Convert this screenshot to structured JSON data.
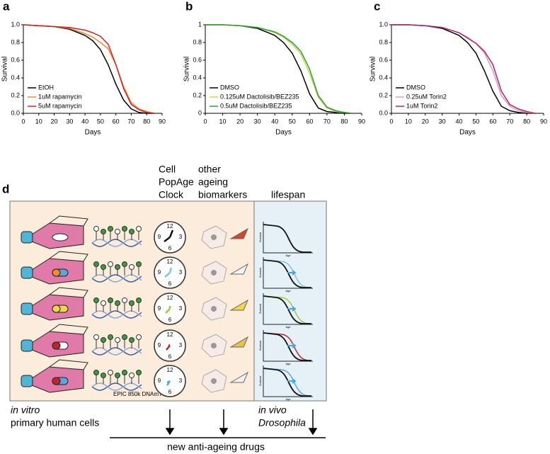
{
  "chart_data": [
    {
      "type": "line",
      "panel": "a",
      "x_label": "Days",
      "y_label": "Survival",
      "x": [
        0,
        10,
        20,
        30,
        40,
        45,
        50,
        55,
        60,
        65,
        70,
        75,
        80,
        85
      ],
      "xlim": [
        0,
        90
      ],
      "xticks": [
        0,
        10,
        20,
        30,
        40,
        50,
        60,
        70,
        80,
        90
      ],
      "ylim": [
        0,
        1
      ],
      "yticks": [
        {
          "value": 0,
          "label": "0.0"
        },
        0.2,
        0.4,
        0.6,
        0.8,
        {
          "value": 1,
          "label": "1.0"
        }
      ],
      "legend": "lower left",
      "series": [
        {
          "name": "EtOH",
          "color": "#000000",
          "values": [
            1,
            0.99,
            0.98,
            0.95,
            0.88,
            0.82,
            0.72,
            0.55,
            0.33,
            0.15,
            0.05,
            0.01,
            0,
            0
          ]
        },
        {
          "name": "1uM rapamycin",
          "color": "#f28c28",
          "values": [
            1,
            0.99,
            0.98,
            0.96,
            0.9,
            0.86,
            0.8,
            0.73,
            0.55,
            0.3,
            0.12,
            0.05,
            0.02,
            0
          ]
        },
        {
          "name": "5uM rapamycin",
          "color": "#d2232a",
          "values": [
            1,
            0.99,
            0.98,
            0.97,
            0.94,
            0.91,
            0.87,
            0.78,
            0.55,
            0.28,
            0.1,
            0.04,
            0.01,
            0
          ]
        }
      ]
    },
    {
      "type": "line",
      "panel": "b",
      "x_label": "Days",
      "y_label": "Survival",
      "x": [
        0,
        10,
        20,
        30,
        40,
        45,
        50,
        55,
        60,
        65,
        70,
        75,
        80,
        85
      ],
      "xlim": [
        0,
        90
      ],
      "xticks": [
        0,
        10,
        20,
        30,
        40,
        50,
        60,
        70,
        80,
        90
      ],
      "ylim": [
        0,
        1
      ],
      "yticks": [
        0,
        0.2,
        0.4,
        0.6,
        0.8,
        1
      ],
      "legend": "lower left",
      "series": [
        {
          "name": "DMSO",
          "color": "#000000",
          "values": [
            1,
            1,
            0.99,
            0.96,
            0.88,
            0.8,
            0.68,
            0.48,
            0.22,
            0.06,
            0.02,
            0.01,
            0,
            0
          ]
        },
        {
          "name": "0.125uM Dactolisib/BEZ235",
          "color": "#c9d94a",
          "values": [
            1,
            1,
            0.99,
            0.97,
            0.91,
            0.86,
            0.78,
            0.67,
            0.45,
            0.18,
            0.06,
            0.02,
            0.01,
            0
          ]
        },
        {
          "name": "0.5uM Dactolisib/BEZ235",
          "color": "#2e9e3a",
          "values": [
            1,
            1,
            0.99,
            0.97,
            0.92,
            0.87,
            0.8,
            0.7,
            0.5,
            0.2,
            0.07,
            0.03,
            0.01,
            0
          ]
        }
      ]
    },
    {
      "type": "line",
      "panel": "c",
      "x_label": "Days",
      "y_label": "Survival",
      "x": [
        0,
        10,
        20,
        30,
        40,
        45,
        50,
        55,
        60,
        65,
        70,
        75,
        80,
        85
      ],
      "xlim": [
        0,
        90
      ],
      "xticks": [
        0,
        10,
        20,
        30,
        40,
        50,
        60,
        70,
        80,
        90
      ],
      "ylim": [
        0,
        1
      ],
      "yticks": [
        {
          "value": 0,
          "label": "0.0"
        },
        0.2,
        0.4,
        0.6,
        0.8,
        {
          "value": 1,
          "label": "1.0"
        }
      ],
      "legend": "lower left",
      "series": [
        {
          "name": "DMSO",
          "color": "#000000",
          "values": [
            1,
            1,
            0.99,
            0.96,
            0.88,
            0.8,
            0.68,
            0.48,
            0.25,
            0.08,
            0.03,
            0.01,
            0,
            0
          ]
        },
        {
          "name": "0.25uM Torin2",
          "color": "#d99ac8",
          "values": [
            1,
            1,
            0.99,
            0.97,
            0.91,
            0.86,
            0.79,
            0.68,
            0.48,
            0.2,
            0.08,
            0.03,
            0.01,
            0
          ]
        },
        {
          "name": "1uM Torin2",
          "color": "#b0246e",
          "values": [
            1,
            1,
            0.99,
            0.97,
            0.91,
            0.85,
            0.79,
            0.7,
            0.55,
            0.25,
            0.1,
            0.05,
            0.02,
            0
          ]
        }
      ]
    }
  ],
  "diagram": {
    "panel": "d",
    "clock_header": [
      "Cell",
      "PopAge",
      "Clock"
    ],
    "biomarker_header": [
      "other",
      "ageing",
      "biomarkers"
    ],
    "lifespan_header": "lifespan",
    "clock_numbers": [
      "12",
      "3",
      "6",
      "9"
    ],
    "mini_plot": {
      "y_label": "Survival",
      "x_label": "Age"
    },
    "array_label": "EPIC 850k DNAm Array",
    "in_vitro": [
      "in vitro",
      "primary human cells"
    ],
    "in_vivo": [
      "in vivo",
      "Drosophila"
    ],
    "output": "new anti-ageing drugs"
  }
}
